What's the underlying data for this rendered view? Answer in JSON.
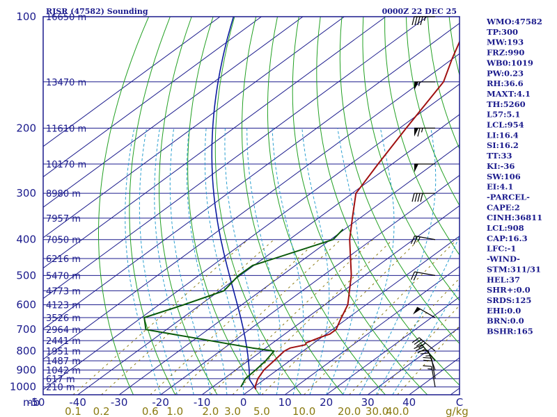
{
  "title_left": "RJSR (47582) Sounding",
  "title_right": "0000Z 22 DEC 25",
  "chart_data": {
    "type": "skew-t",
    "pressure_unit_label": "mb",
    "mixing_ratio_unit_label": "g/kg",
    "pressure_levels": [
      100,
      200,
      300,
      400,
      500,
      600,
      700,
      800,
      900,
      1000
    ],
    "temperature_ticks": [
      -50,
      -40,
      -30,
      -20,
      -10,
      0,
      10,
      20,
      30,
      40
    ],
    "temperature_tick_labels": [
      "-50",
      "-40",
      "-30",
      "-20",
      "-10",
      "0",
      "10",
      "20",
      "30",
      "40"
    ],
    "last_temperature_label": "C",
    "mixing_ratio_ticks": [
      0.1,
      0.2,
      0.6,
      1.0,
      2.0,
      3.0,
      5.0,
      10.0,
      20.0,
      30.0,
      40.0
    ],
    "mixing_ratio_labels": [
      "0.1",
      "0.2",
      "0.6",
      "1.0",
      "2.0",
      "3.0",
      "5.0",
      "10.0",
      "20.0",
      "30.0",
      "40.0"
    ],
    "height_labels": [
      {
        "p": 100,
        "label": "16650 m"
      },
      {
        "p": 150,
        "label": "13470 m"
      },
      {
        "p": 200,
        "label": "11610 m"
      },
      {
        "p": 250,
        "label": "10170 m"
      },
      {
        "p": 300,
        "label": "8980 m"
      },
      {
        "p": 350,
        "label": "7957 m"
      },
      {
        "p": 400,
        "label": "7050 m"
      },
      {
        "p": 450,
        "label": "6216 m"
      },
      {
        "p": 500,
        "label": "5470 m"
      },
      {
        "p": 550,
        "label": "4773 m"
      },
      {
        "p": 600,
        "label": "4123 m"
      },
      {
        "p": 650,
        "label": "3526 m"
      },
      {
        "p": 700,
        "label": "2964 m"
      },
      {
        "p": 750,
        "label": "2441 m"
      },
      {
        "p": 800,
        "label": "1951 m"
      },
      {
        "p": 850,
        "label": "1487 m"
      },
      {
        "p": 900,
        "label": "1042 m"
      },
      {
        "p": 950,
        "label": "617 m"
      },
      {
        "p": 1000,
        "label": "210 m"
      }
    ],
    "temperature_profile": [
      {
        "p": 1015,
        "t": 1.2
      },
      {
        "p": 1000,
        "t": 0.2
      },
      {
        "p": 950,
        "t": -1.8
      },
      {
        "p": 900,
        "t": -3.2
      },
      {
        "p": 850,
        "t": -3.8
      },
      {
        "p": 800,
        "t": -4.5
      },
      {
        "p": 785,
        "t": -4.1
      },
      {
        "p": 770,
        "t": -1.5
      },
      {
        "p": 760,
        "t": -1.9
      },
      {
        "p": 735,
        "t": -0.4
      },
      {
        "p": 720,
        "t": 0.9
      },
      {
        "p": 700,
        "t": 0.9
      },
      {
        "p": 660,
        "t": -1.2
      },
      {
        "p": 600,
        "t": -4.4
      },
      {
        "p": 500,
        "t": -13.2
      },
      {
        "p": 400,
        "t": -25.4
      },
      {
        "p": 350,
        "t": -31.8
      },
      {
        "p": 300,
        "t": -39.1
      },
      {
        "p": 250,
        "t": -43.4
      },
      {
        "p": 200,
        "t": -48.4
      },
      {
        "p": 150,
        "t": -54.6
      },
      {
        "p": 130,
        "t": -60.1
      },
      {
        "p": 110,
        "t": -66.1
      },
      {
        "p": 103,
        "t": -65.4
      },
      {
        "p": 100,
        "t": -65.3
      }
    ],
    "dewpoint_profile": [
      {
        "p": 1000,
        "t": -3.2
      },
      {
        "p": 950,
        "t": -4.8
      },
      {
        "p": 900,
        "t": -5.2
      },
      {
        "p": 850,
        "t": -5.8
      },
      {
        "p": 800,
        "t": -7.0
      },
      {
        "p": 785,
        "t": -13.2
      },
      {
        "p": 700,
        "t": -45.0
      },
      {
        "p": 650,
        "t": -49.3
      },
      {
        "p": 600,
        "t": -44.0
      },
      {
        "p": 550,
        "t": -38.9
      },
      {
        "p": 500,
        "t": -40.4
      },
      {
        "p": 470,
        "t": -40.3
      },
      {
        "p": 400,
        "t": -29.4
      },
      {
        "p": 375,
        "t": -30.4
      }
    ],
    "wind_barbs": [
      {
        "p": 100,
        "dir": 270,
        "spd": 45
      },
      {
        "p": 150,
        "dir": 270,
        "spd": 55
      },
      {
        "p": 200,
        "dir": 270,
        "spd": 65
      },
      {
        "p": 250,
        "dir": 270,
        "spd": 50
      },
      {
        "p": 300,
        "dir": 270,
        "spd": 40
      },
      {
        "p": 400,
        "dir": 280,
        "spd": 25
      },
      {
        "p": 500,
        "dir": 280,
        "spd": 20
      },
      {
        "p": 650,
        "dir": 300,
        "spd": 50
      },
      {
        "p": 800,
        "dir": 310,
        "spd": 40
      },
      {
        "p": 850,
        "dir": 320,
        "spd": 30
      },
      {
        "p": 900,
        "dir": 340,
        "spd": 25
      },
      {
        "p": 950,
        "dir": 350,
        "spd": 20
      },
      {
        "p": 1000,
        "dir": 350,
        "spd": 15
      }
    ],
    "colors": {
      "frame": "#1a1a8c",
      "isobar": "#1a1a8c",
      "isotherm": "#1a1a8c",
      "dry_adiabat": "#22a022",
      "moist_adiabat": "#2a9fd0",
      "mixing_ratio": "#8a7a10",
      "temperature": "#a01010",
      "dewpoint": "#0a5a0a",
      "parcel": "#0a1aa0",
      "wind_barb": "#000000"
    }
  },
  "indices": [
    "WMO:47582",
    "TP:300",
    "MW:193",
    "FRZ:990",
    "WB0:1019",
    "PW:0.23",
    "RH:36.6",
    "MAXT:4.1",
    "TH:5260",
    "L57:5.1",
    "LCL:954",
    "LI:16.4",
    "SI:16.2",
    "TT:33",
    "KI:-36",
    "SW:106",
    "EI:4.1",
    "-PARCEL-",
    "CAPE:2",
    "CINH:36811",
    "LCL:908",
    "CAP:16.3",
    "LFC:-1",
    "-WIND-",
    "STM:311/31",
    "HEL:37",
    "SHR+:0.0",
    "SRDS:125",
    "EHI:0.0",
    "BRN:0.0",
    "BSHR:165"
  ]
}
